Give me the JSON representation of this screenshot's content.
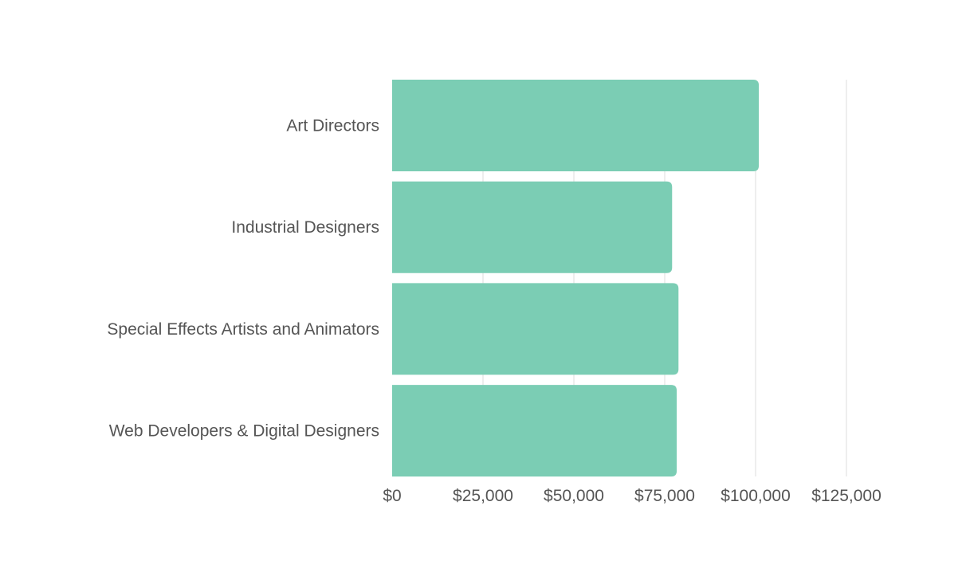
{
  "chart_data": {
    "type": "bar",
    "orientation": "horizontal",
    "categories": [
      "Art Directors",
      "Industrial Designers",
      "Special Effects Artists and Animators",
      "Web Developers & Digital Designers"
    ],
    "values": [
      100890,
      77030,
      78790,
      78300
    ],
    "xlim": [
      0,
      125000
    ],
    "x_ticks": [
      0,
      25000,
      50000,
      75000,
      100000,
      125000
    ],
    "x_tick_labels": [
      "$0",
      "$25,000",
      "$50,000",
      "$75,000",
      "$100,000",
      "$125,000"
    ],
    "grid": true,
    "bar_color": "#7bcdb4",
    "title": "",
    "xlabel": "",
    "ylabel": ""
  }
}
